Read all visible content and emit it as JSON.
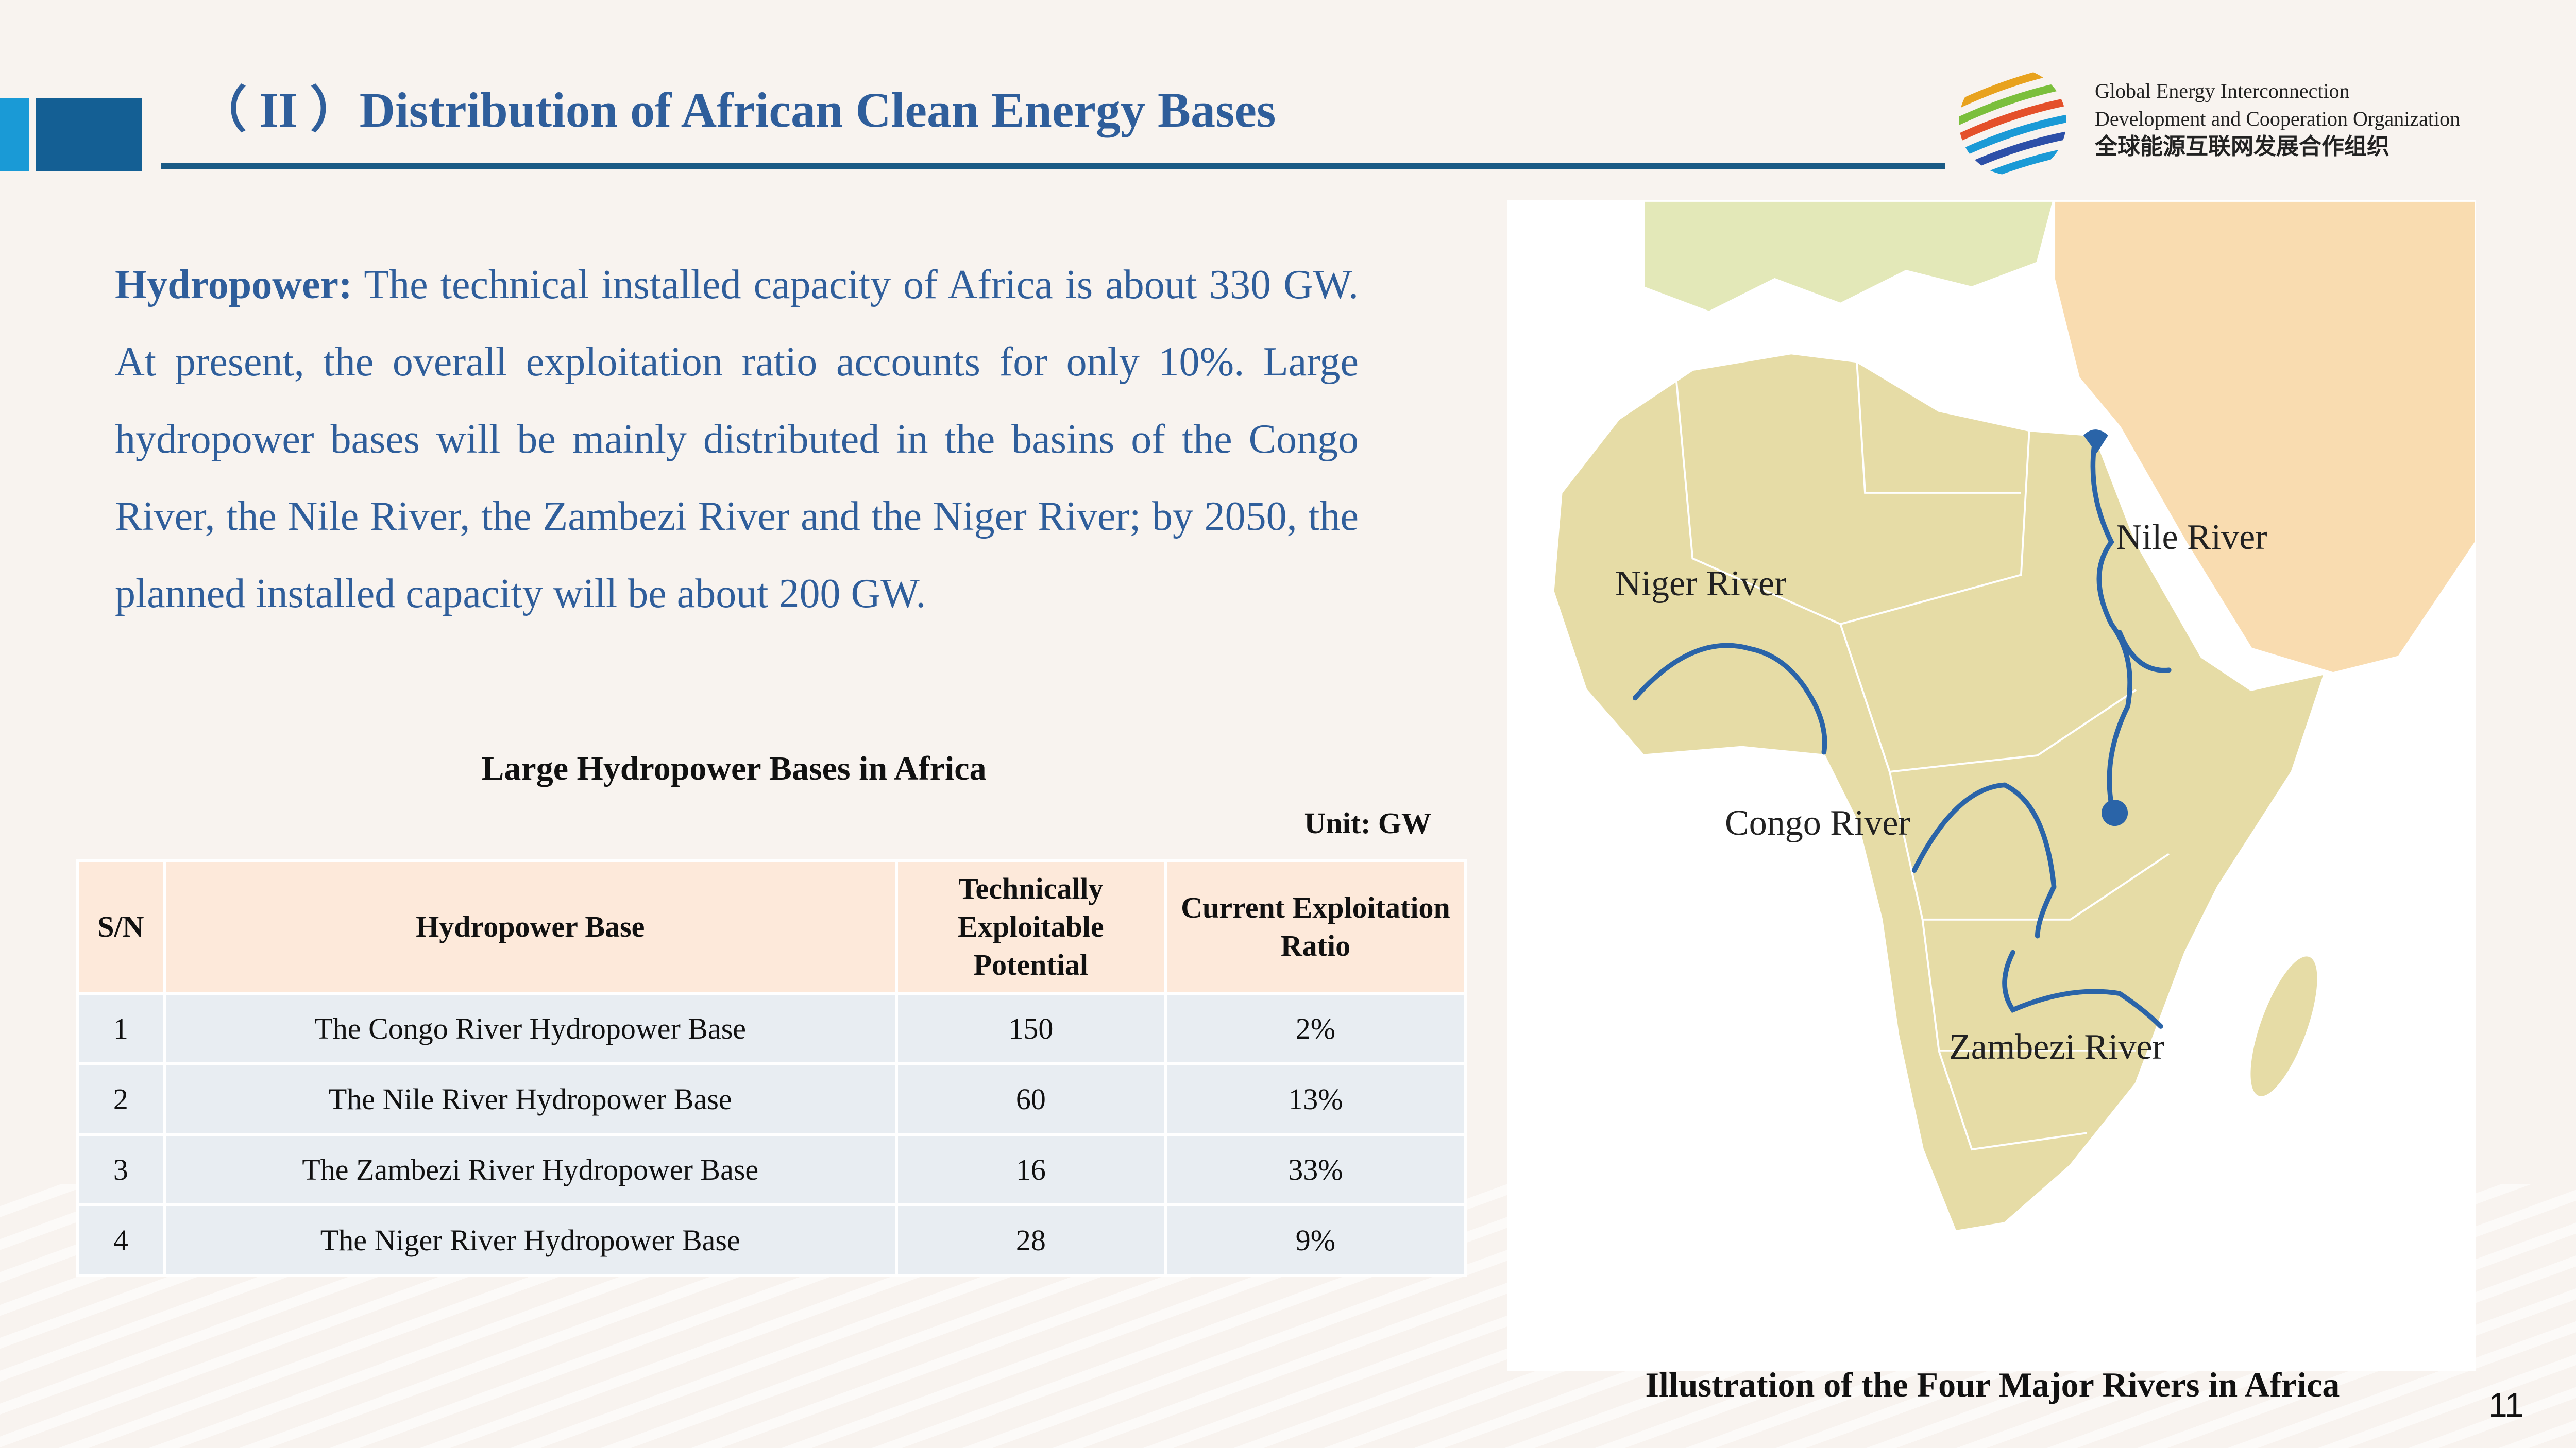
{
  "header": {
    "title": "（ II ）Distribution of African Clean Energy Bases",
    "org_en_line1": "Global Energy Interconnection",
    "org_en_line2": "Development and Cooperation Organization",
    "org_cn": "全球能源互联网发展合作组织"
  },
  "body": {
    "lead": "Hydropower:",
    "text": " The technical installed capacity of Africa is about 330 GW. At present, the overall exploitation ratio accounts for only 10%. Large hydropower bases will be mainly distributed in the basins of the Congo River, the Nile River,  the Zambezi River and the Niger River; by 2050, the planned installed capacity will be about 200 GW."
  },
  "table": {
    "title": "Large Hydropower Bases in Africa",
    "unit": "Unit: GW",
    "headers": [
      "S/N",
      "Hydropower Base",
      "Technically Exploitable Potential",
      "Current Exploitation Ratio"
    ],
    "rows": [
      [
        "1",
        "The Congo River Hydropower Base",
        "150",
        "2%"
      ],
      [
        "2",
        "The Nile River Hydropower Base",
        "60",
        "13%"
      ],
      [
        "3",
        "The Zambezi River Hydropower Base",
        "16",
        "33%"
      ],
      [
        "4",
        "The Niger River Hydropower Base",
        "28",
        "9%"
      ]
    ]
  },
  "map": {
    "labels": {
      "nile": "Nile River",
      "niger": "Niger River",
      "congo": "Congo River",
      "zambezi": "Zambezi River"
    },
    "caption": "Illustration of the Four Major Rivers in Africa",
    "colors": {
      "land": "#e6dca6",
      "arabia": "#f9dcb0",
      "europe": "#e3e8b8",
      "river": "#2a64a8"
    }
  },
  "page_number": "11"
}
